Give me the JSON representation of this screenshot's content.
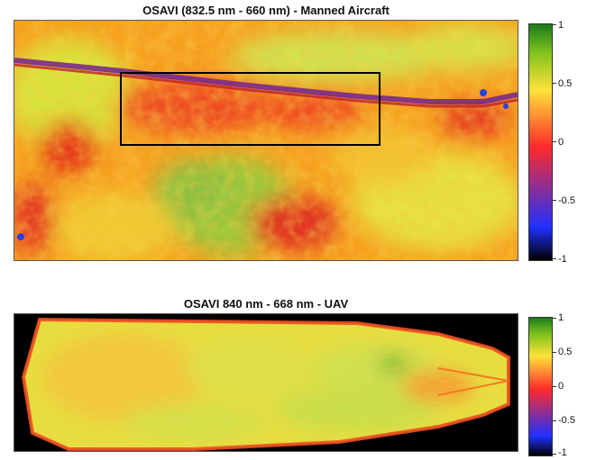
{
  "panels": [
    {
      "title": "OSAVI (832.5 nm - 660 nm) - Manned Aircraft",
      "colorbar_ticks": [
        "1",
        "0.5",
        "0",
        "-0.5",
        "-1"
      ]
    },
    {
      "title": "OSAVI 840 nm - 668 nm - UAV",
      "colorbar_ticks": [
        "1",
        "0.5",
        "0",
        "-0.5",
        "-1"
      ]
    }
  ],
  "colorbar": {
    "range": [
      -1,
      1
    ],
    "colors": [
      "#000000",
      "#2030ff",
      "#ff2a2a",
      "#ffe23a",
      "#7fc31c",
      "#1c7a1c"
    ]
  }
}
